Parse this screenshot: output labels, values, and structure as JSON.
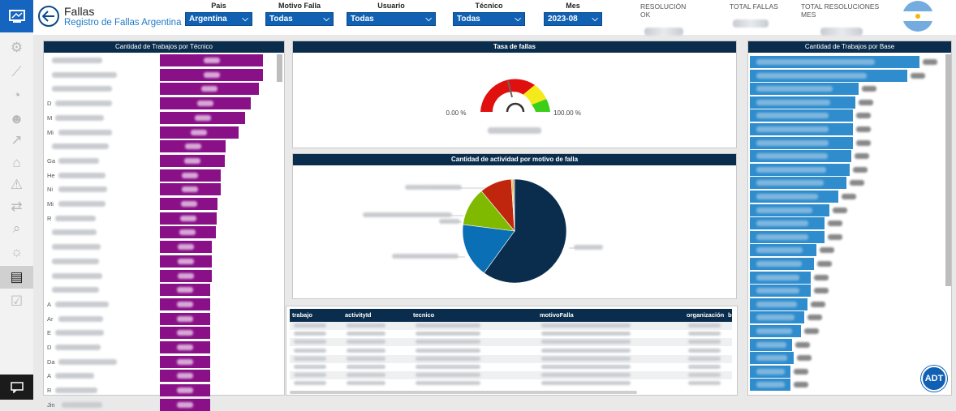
{
  "colors": {
    "accent": "#1565c0",
    "header_bar": "#0b2d4d",
    "tech_bar": "#8a1088",
    "base_bar": "#2f8dcd",
    "gauge_red": "#e0100e",
    "gauge_yellow": "#f4e91a",
    "gauge_green": "#3ccf1a"
  },
  "header": {
    "title": "Fallas",
    "subtitle": "Registro de Fallas Argentina"
  },
  "filters": [
    {
      "label": "Pais",
      "value": "Argentina"
    },
    {
      "label": "Motivo Falla",
      "value": "Todas"
    },
    {
      "label": "Usuario",
      "value": "Todas"
    },
    {
      "label": "Técnico",
      "value": "Todas"
    },
    {
      "label": "Mes",
      "value": "2023-08"
    }
  ],
  "kpis": [
    "RESOLUCIÓN OK",
    "TOTAL FALLAS",
    "TOTAL RESOLUCIONES MES"
  ],
  "sidebar_icons": [
    "settings-icon",
    "line-chart-icon",
    "gauge-icon",
    "people-icon",
    "trend-icon",
    "tag-icon",
    "warning-icon",
    "swap-icon",
    "search-chart-icon",
    "lightbulb-icon",
    "report-alert-icon",
    "checklist-icon"
  ],
  "panels": {
    "tech": {
      "title": "Cantidad de Trabajos por Técnico",
      "name_prefixes": [
        "",
        "",
        "",
        "D",
        "M",
        "Mi",
        "",
        "Ga",
        "He",
        "Ni",
        "Mi",
        "R",
        "",
        "",
        "",
        "",
        "",
        "A",
        "Ar",
        "E",
        "D",
        "Da",
        "A",
        "R",
        "Jin"
      ]
    },
    "gauge": {
      "title": "Tasa de fallas",
      "min_label": "0.00 %",
      "max_label": "100.00 %"
    },
    "pie": {
      "title": "Cantidad de actividad por motivo de falla"
    },
    "base": {
      "title": "Cantidad de Trabajos por Base"
    },
    "table": {
      "columns": [
        "trabajo",
        "activityId",
        "tecnico",
        "motivoFalla",
        "organización",
        "b"
      ]
    }
  },
  "chart_data": [
    {
      "type": "bar",
      "title": "Cantidad de Trabajos por Técnico",
      "note": "values relative (blurred)",
      "values": [
        100,
        100,
        96,
        88,
        83,
        76,
        64,
        63,
        59,
        59,
        56,
        55,
        54,
        50,
        50,
        50,
        49,
        49,
        49,
        49,
        49,
        49,
        49,
        49,
        49
      ]
    },
    {
      "type": "gauge",
      "title": "Tasa de fallas",
      "min": 0,
      "max": 100,
      "bands": [
        {
          "color": "red",
          "from": 0,
          "to": 80
        },
        {
          "color": "yellow",
          "from": 80,
          "to": 90
        },
        {
          "color": "green",
          "from": 90,
          "to": 100
        }
      ],
      "needle": 45
    },
    {
      "type": "pie",
      "title": "Cantidad de actividad por motivo de falla",
      "slices": [
        {
          "color": "#0b2d4d",
          "value": 60
        },
        {
          "color": "#0a6fb5",
          "value": 17
        },
        {
          "color": "#7fba00",
          "value": 12
        },
        {
          "color": "#c0260e",
          "value": 10
        },
        {
          "color": "#f4c800",
          "value": 0.5
        },
        {
          "color": "#9b7fd1",
          "value": 0.5
        }
      ]
    },
    {
      "type": "bar",
      "title": "Cantidad de Trabajos por Base",
      "note": "values relative (blurred)",
      "values": [
        100,
        93,
        64,
        62,
        61,
        61,
        61,
        60,
        59,
        57,
        52,
        47,
        44,
        44,
        39,
        38,
        36,
        36,
        34,
        32,
        30,
        25,
        26,
        24,
        24
      ]
    }
  ]
}
